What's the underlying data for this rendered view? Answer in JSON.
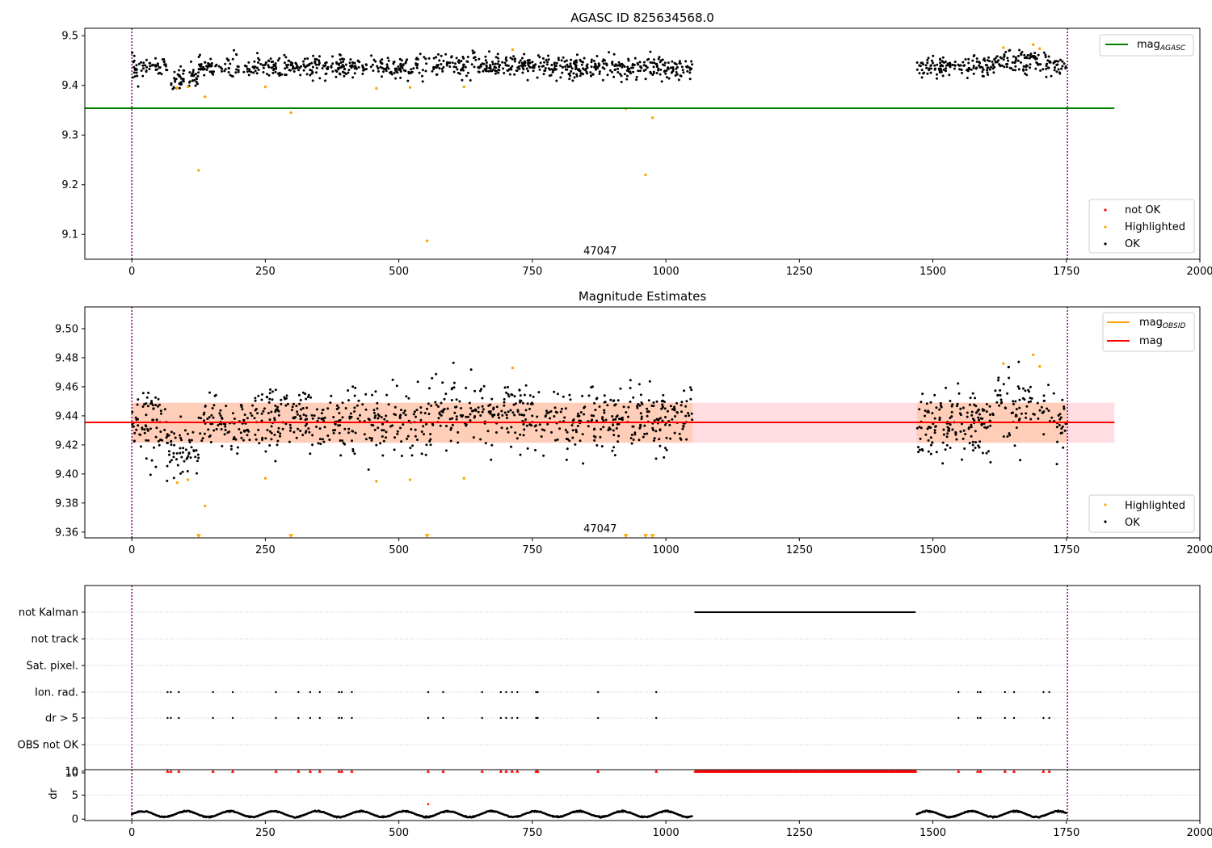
{
  "chart_data": [
    {
      "type": "scatter",
      "title": "AGASC ID 825634568.0",
      "xlim": [
        -88,
        2000
      ],
      "ylim": [
        9.05,
        9.515
      ],
      "x_ticks": [
        0,
        250,
        500,
        750,
        1000,
        1250,
        1500,
        1750,
        2000
      ],
      "y_ticks": [
        9.1,
        9.2,
        9.3,
        9.4,
        9.5
      ],
      "series": [
        {
          "name": "mag",
          "sub": "AGASC",
          "kind": "hline",
          "y": 9.354,
          "x_range": [
            -88,
            1840
          ],
          "color": "#008000"
        },
        {
          "name": "not OK",
          "kind": "points",
          "color": "#ff0000",
          "points": []
        },
        {
          "name": "Highlighted",
          "kind": "points",
          "color": "#ffa500",
          "points": [
            [
              85,
              9.395
            ],
            [
              105,
              9.397
            ],
            [
              125,
              9.229
            ],
            [
              137,
              9.377
            ],
            [
              250,
              9.397
            ],
            [
              298,
              9.345
            ],
            [
              458,
              9.394
            ],
            [
              521,
              9.396
            ],
            [
              553,
              9.087
            ],
            [
              622,
              9.397
            ],
            [
              713,
              9.472
            ],
            [
              925,
              9.353
            ],
            [
              962,
              9.22
            ],
            [
              975,
              9.335
            ],
            [
              1632,
              9.476
            ],
            [
              1688,
              9.482
            ],
            [
              1700,
              9.474
            ]
          ]
        },
        {
          "name": "OK",
          "kind": "points",
          "color": "#000000",
          "clusters": [
            [
              0,
              1050
            ],
            [
              1470,
              1750
            ]
          ]
        }
      ],
      "annotation": {
        "text": "47047",
        "x": 877,
        "y": 9.065
      },
      "vlines": [
        {
          "x": 0,
          "color": "#800080"
        },
        {
          "x": 1752,
          "color": "#800080"
        }
      ],
      "legends": [
        {
          "placement": "top-right",
          "entries": [
            {
              "label": "mag",
              "sub": "AGASC",
              "kind": "line",
              "color": "#008000"
            }
          ]
        },
        {
          "placement": "bottom-right",
          "entries": [
            {
              "label": "not OK",
              "kind": "dot",
              "color": "#ff0000"
            },
            {
              "label": "Highlighted",
              "kind": "dot",
              "color": "#ffa500"
            },
            {
              "label": "OK",
              "kind": "dot",
              "color": "#000000"
            }
          ]
        }
      ]
    },
    {
      "type": "scatter",
      "title": "Magnitude Estimates",
      "xlim": [
        -88,
        2000
      ],
      "ylim": [
        9.356,
        9.515
      ],
      "x_ticks": [
        0,
        250,
        500,
        750,
        1000,
        1250,
        1500,
        1750,
        2000
      ],
      "y_ticks": [
        9.36,
        9.38,
        9.4,
        9.42,
        9.44,
        9.46,
        9.48,
        9.5
      ],
      "bands": [
        {
          "x_range": [
            0,
            1840
          ],
          "y_range": [
            9.4215,
            9.449
          ],
          "color": "#ffd2d9"
        },
        {
          "x_range": [
            0,
            1050
          ],
          "y_range": [
            9.4215,
            9.449
          ],
          "color": "#ffc8aa"
        },
        {
          "x_range": [
            1470,
            1750
          ],
          "y_range": [
            9.4215,
            9.449
          ],
          "color": "#ffc8aa"
        }
      ],
      "series": [
        {
          "name": "mag",
          "sub": "OBSID",
          "kind": "segments",
          "color": "#ffa500",
          "segments": [
            [
              0,
              1050,
              9.4355
            ],
            [
              1470,
              1750,
              9.4355
            ]
          ]
        },
        {
          "name": "mag",
          "kind": "hline",
          "y": 9.4355,
          "x_range": [
            -88,
            1840
          ],
          "color": "#ff0000"
        },
        {
          "name": "Highlighted",
          "kind": "points",
          "color": "#ffa500",
          "points": [
            [
              85,
              9.394
            ],
            [
              105,
              9.396
            ],
            [
              137,
              9.378
            ],
            [
              250,
              9.397
            ],
            [
              458,
              9.395
            ],
            [
              521,
              9.396
            ],
            [
              622,
              9.397
            ],
            [
              713,
              9.473
            ],
            [
              1632,
              9.476
            ],
            [
              1688,
              9.482
            ],
            [
              1700,
              9.474
            ]
          ]
        },
        {
          "name": "Highlighted (below axis)",
          "kind": "markers",
          "color": "#ffa500",
          "x": [
            125,
            298,
            553,
            925,
            962,
            975
          ],
          "y": 9.357
        },
        {
          "name": "OK",
          "kind": "points",
          "color": "#000000",
          "clusters": [
            [
              0,
              1050
            ],
            [
              1470,
              1750
            ]
          ]
        }
      ],
      "annotation": {
        "text": "47047",
        "x": 877,
        "y": 9.3615
      },
      "vlines": [
        {
          "x": 0,
          "color": "#800080"
        },
        {
          "x": 1752,
          "color": "#800080"
        }
      ],
      "legends": [
        {
          "placement": "top-right",
          "entries": [
            {
              "label": "mag",
              "sub": "OBSID",
              "kind": "line",
              "color": "#ffa500"
            },
            {
              "label": "mag",
              "kind": "line",
              "color": "#ff0000"
            }
          ]
        },
        {
          "placement": "bottom-right",
          "entries": [
            {
              "label": "Highlighted",
              "kind": "dot",
              "color": "#ffa500"
            },
            {
              "label": "OK",
              "kind": "dot",
              "color": "#000000"
            }
          ]
        }
      ]
    },
    {
      "type": "scatter",
      "title": "",
      "xlim": [
        -88,
        2000
      ],
      "categories": [
        "not Kalman",
        "not track",
        "Sat. pixel.",
        "Ion. rad.",
        "dr > 5",
        "OBS not OK",
        "10"
      ],
      "flag_series": [
        {
          "category": "not Kalman",
          "x_range": [
            1055,
            1468
          ]
        },
        {
          "category": "not track",
          "x": []
        },
        {
          "category": "Sat. pixel.",
          "x": []
        },
        {
          "category": "Ion. rad.",
          "x": [
            67,
            73,
            88,
            152,
            189,
            270,
            312,
            334,
            352,
            388,
            393,
            412,
            555,
            583,
            656,
            691,
            701,
            712,
            722,
            757,
            760,
            873,
            982,
            1548,
            1584,
            1589,
            1635,
            1652,
            1707,
            1718
          ]
        },
        {
          "category": "dr > 5",
          "x": [
            67,
            73,
            88,
            152,
            189,
            270,
            312,
            334,
            352,
            388,
            393,
            412,
            555,
            583,
            656,
            691,
            701,
            712,
            722,
            757,
            760,
            873,
            982,
            1548,
            1584,
            1589,
            1635,
            1652,
            1707,
            1718
          ]
        },
        {
          "category": "OBS not OK",
          "x": []
        }
      ],
      "vlines": [
        {
          "x": 0,
          "color": "#800080"
        },
        {
          "x": 1752,
          "color": "#800080"
        }
      ]
    },
    {
      "type": "scatter",
      "ylabel": "dr",
      "xlim": [
        -88,
        2000
      ],
      "ylim": [
        -0.3,
        10.3
      ],
      "x_ticks": [
        0,
        250,
        500,
        750,
        1000,
        1250,
        1500,
        1750,
        2000
      ],
      "y_ticks": [
        0,
        5,
        10
      ],
      "series": [
        {
          "name": "dr",
          "kind": "points",
          "color": "#000000",
          "clusters": [
            [
              0,
              1050
            ],
            [
              1470,
              1750
            ]
          ],
          "y_range": [
            0.3,
            1.8
          ]
        },
        {
          "name": "dr",
          "kind": "points",
          "color": "#000000",
          "points": [
            [
              555,
              3.1
            ]
          ]
        },
        {
          "name": "dr > 10",
          "kind": "markers",
          "color": "#ff0000",
          "x": [
            67,
            73,
            88,
            152,
            189,
            270,
            312,
            334,
            352,
            388,
            393,
            412,
            555,
            583,
            656,
            691,
            701,
            712,
            722,
            757,
            760,
            873,
            982,
            1548,
            1584,
            1589,
            1635,
            1652,
            1707,
            1718
          ],
          "x_range": [
            1055,
            1468
          ],
          "y": 10
        }
      ],
      "vlines": [
        {
          "x": 0,
          "color": "#800080"
        },
        {
          "x": 1752,
          "color": "#800080"
        }
      ]
    }
  ]
}
